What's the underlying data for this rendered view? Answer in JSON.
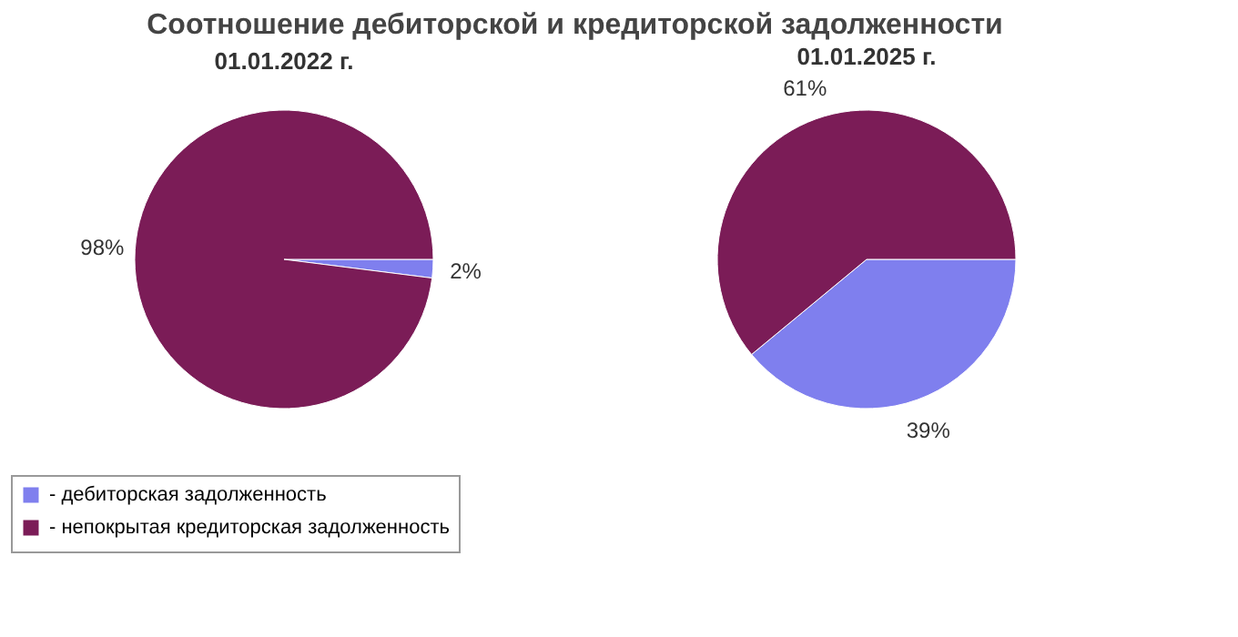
{
  "chart_data": [
    {
      "type": "pie",
      "title": "01.01.2022 г.",
      "annotations": [
        "Соотношение дебиторской и кредиторской задолженности"
      ],
      "categories": [
        "- дебиторская задолженность",
        "- непокрытая кредиторская задолженность"
      ],
      "values": [
        2,
        98
      ],
      "colors": [
        "#7f7fee",
        "#7b1c57"
      ],
      "value_labels": [
        "2%",
        "98%"
      ],
      "legend": "bottom"
    },
    {
      "type": "pie",
      "title": "01.01.2025 г.",
      "values": [
        39,
        61
      ],
      "colors": [
        "#7f7fee",
        "#7b1c57"
      ],
      "value_labels": [
        "39%",
        "61%"
      ]
    }
  ]
}
